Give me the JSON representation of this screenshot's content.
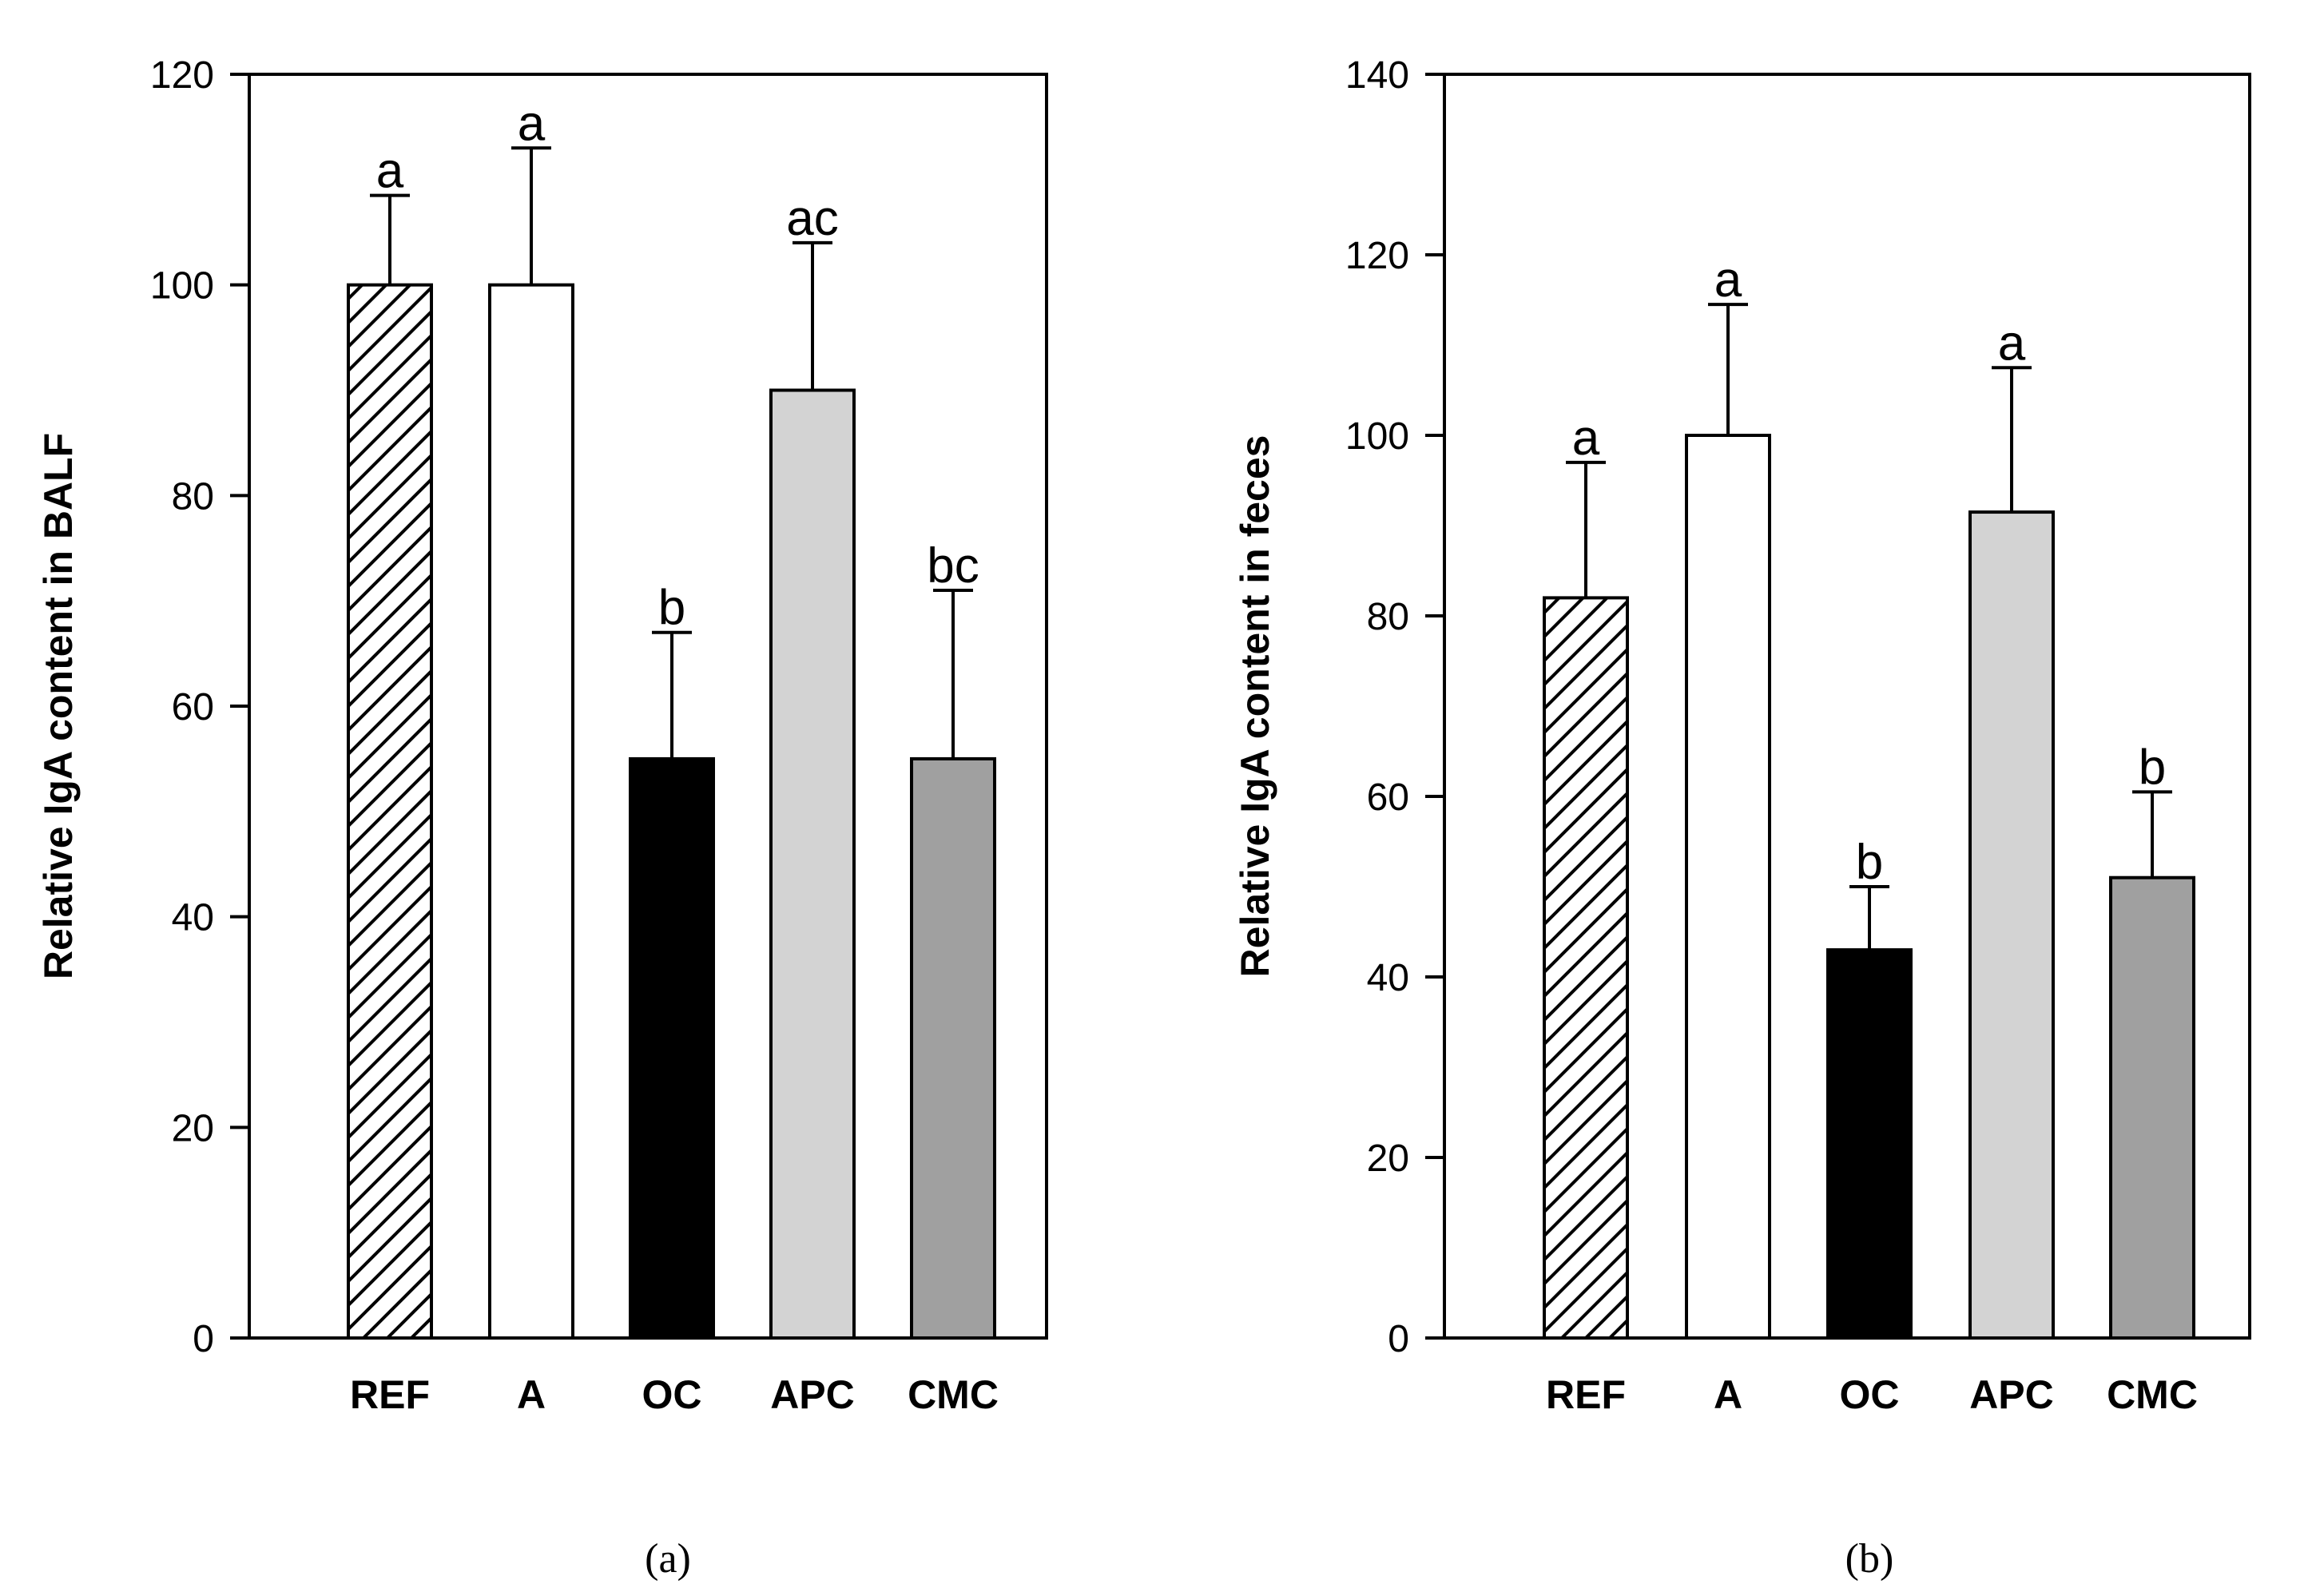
{
  "chart_data": [
    {
      "type": "bar",
      "panel_label": "(a)",
      "title": "",
      "xlabel": "",
      "ylabel": "Relative IgA content in BALF",
      "ylim": [
        0,
        120
      ],
      "yticks": [
        0,
        20,
        40,
        60,
        80,
        100,
        120
      ],
      "categories": [
        "REF",
        "A",
        "OC",
        "APC",
        "CMC"
      ],
      "values": [
        100,
        100,
        55,
        90,
        55
      ],
      "errors": [
        8.5,
        13,
        12,
        14,
        16
      ],
      "significance": [
        "a",
        "a",
        "b",
        "ac",
        "bc"
      ],
      "bar_styles": [
        "hatched",
        "white",
        "black",
        "lightgray",
        "gray"
      ]
    },
    {
      "type": "bar",
      "panel_label": "(b)",
      "title": "",
      "xlabel": "",
      "ylabel": "Relative IgA content in feces",
      "ylim": [
        0,
        140
      ],
      "yticks": [
        0,
        20,
        40,
        60,
        80,
        100,
        120,
        140
      ],
      "categories": [
        "REF",
        "A",
        "OC",
        "APC",
        "CMC"
      ],
      "values": [
        82,
        100,
        43,
        91.5,
        51
      ],
      "errors": [
        15,
        14.5,
        7,
        16,
        9.5
      ],
      "significance": [
        "a",
        "a",
        "b",
        "a",
        "b"
      ],
      "bar_styles": [
        "hatched",
        "white",
        "black",
        "lightgray",
        "gray"
      ]
    }
  ],
  "colors": {
    "white": "#ffffff",
    "black": "#000000",
    "lightgray": "#d3d3d3",
    "gray": "#a0a0a0",
    "hatch": "#000000"
  }
}
